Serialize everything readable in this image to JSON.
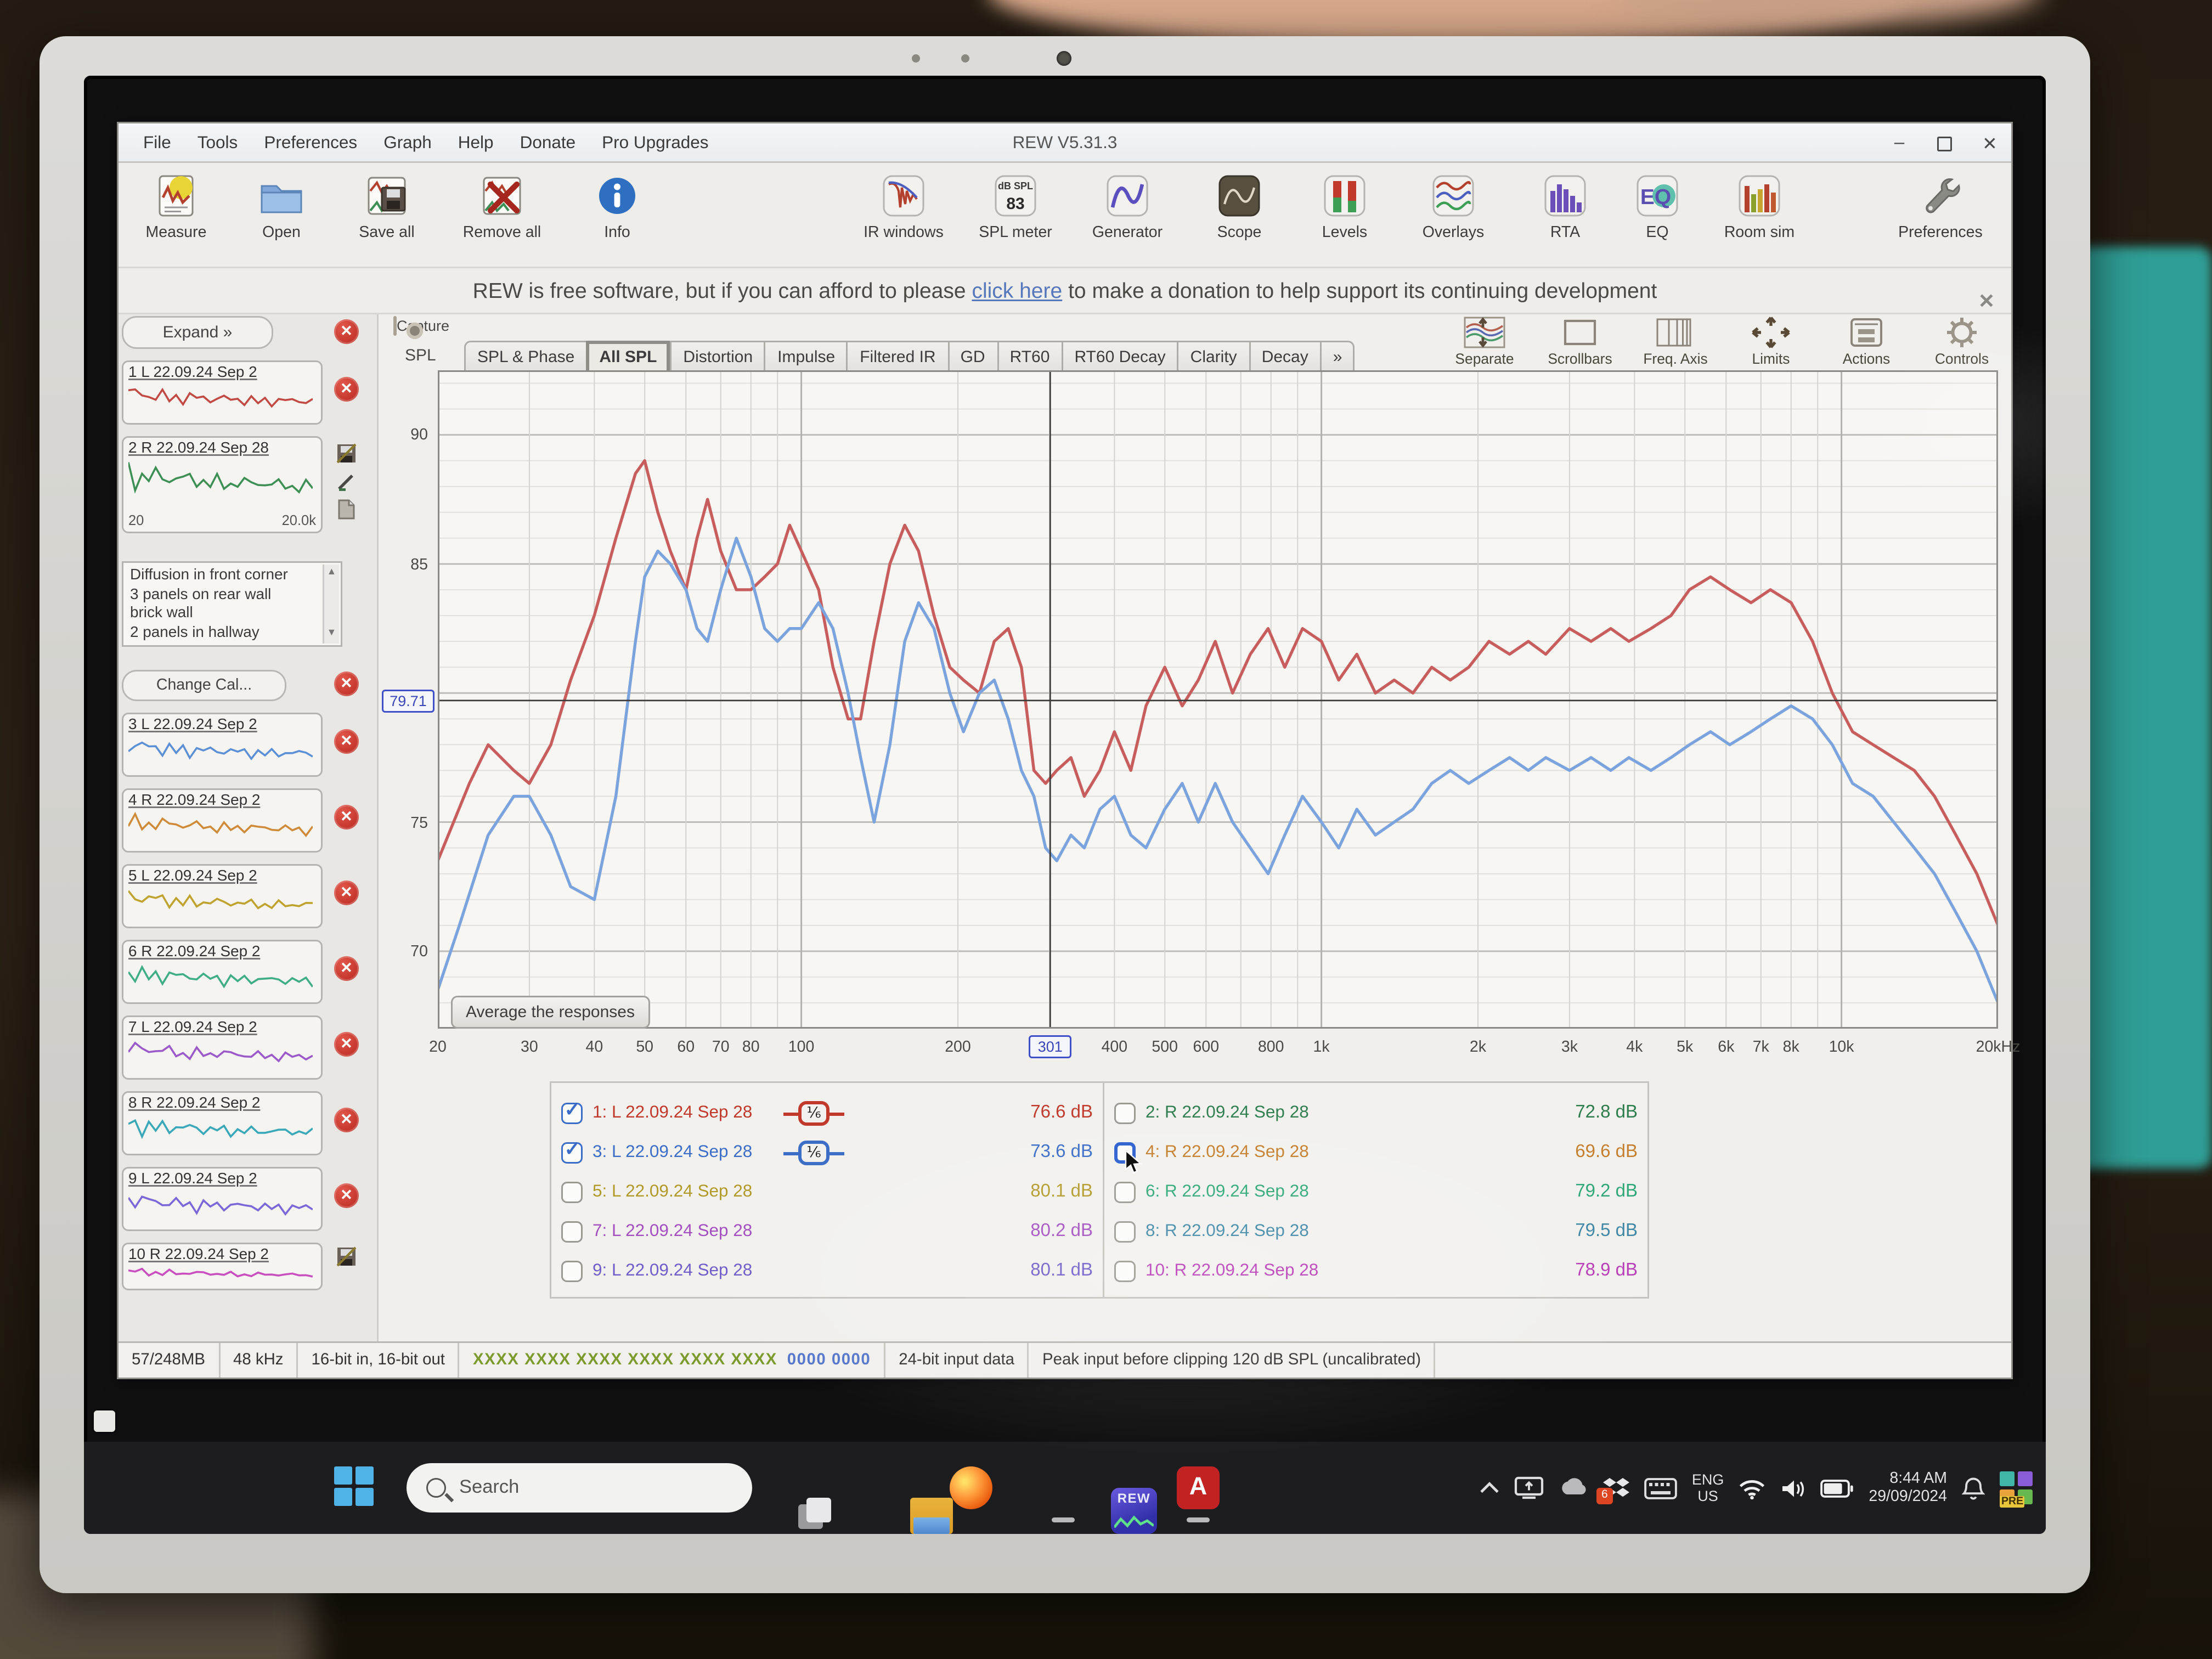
{
  "window": {
    "title": "REW V5.31.3",
    "menus": [
      "File",
      "Tools",
      "Preferences",
      "Graph",
      "Help",
      "Donate",
      "Pro Upgrades"
    ],
    "controls": {
      "minimize": "–",
      "close": "✕"
    }
  },
  "toolbar": {
    "left": [
      {
        "label": "Measure"
      },
      {
        "label": "Open"
      },
      {
        "label": "Save all"
      },
      {
        "label": "Remove all"
      },
      {
        "label": "Info"
      }
    ],
    "middle": [
      {
        "label": "IR windows"
      },
      {
        "label": "SPL meter"
      },
      {
        "label": "Generator"
      },
      {
        "label": "Scope"
      },
      {
        "label": "Levels"
      },
      {
        "label": "Overlays"
      },
      {
        "label": "RTA"
      },
      {
        "label": "EQ"
      },
      {
        "label": "Room sim"
      }
    ],
    "spl_meter_unit": "dB SPL",
    "spl_meter_value": "83",
    "right": {
      "label": "Preferences"
    }
  },
  "banner": {
    "text_before": "REW is free software, but if you can afford to please",
    "link": "click here",
    "text_after": "to make a donation to help support its continuing development",
    "close": "✕"
  },
  "sidebar": {
    "expand_label": "Expand",
    "expand_chevrons": "»",
    "change_cal_label": "Change Cal...",
    "thumb_axis_min": "20",
    "thumb_axis_max": "20.0k",
    "notes_lines": [
      "Diffusion in front corner",
      "3 panels on rear wall",
      "brick wall",
      "2 panels in hallway"
    ],
    "items": [
      {
        "label": "1 L 22.09.24 Sep 2",
        "color": "#c24a44"
      },
      {
        "label": "2 R 22.09.24 Sep 28",
        "color": "#3d8f55",
        "selected": true
      },
      {
        "label": "3 L 22.09.24 Sep 2",
        "color": "#5b8fd6"
      },
      {
        "label": "4 R 22.09.24 Sep 2",
        "color": "#cf8b3a"
      },
      {
        "label": "5 L 22.09.24 Sep 2",
        "color": "#bfa32e"
      },
      {
        "label": "6 R 22.09.24 Sep 2",
        "color": "#3fae86"
      },
      {
        "label": "7 L 22.09.24 Sep 2",
        "color": "#9b59c9"
      },
      {
        "label": "8 R 22.09.24 Sep 2",
        "color": "#3aa8b8"
      },
      {
        "label": "9 L 22.09.24 Sep 2",
        "color": "#7a68d8"
      },
      {
        "label": "10 R 22.09.24 Sep 2",
        "color": "#c94fc0"
      }
    ]
  },
  "graph": {
    "capture_label": "Capture",
    "tabs": [
      "SPL & Phase",
      "All SPL",
      "Distortion",
      "Impulse",
      "Filtered IR",
      "GD",
      "RT60",
      "RT60 Decay",
      "Clarity",
      "Decay"
    ],
    "active_tab": "All SPL",
    "more_tabs": "»",
    "right_buttons": [
      "Separate",
      "Scrollbars",
      "Freq. Axis",
      "Limits",
      "Actions",
      "Controls"
    ],
    "average_button": "Average the responses",
    "cursor_freq_label": "301",
    "cursor_spl_label": "79.71"
  },
  "chart_data": {
    "type": "line",
    "title": "All SPL",
    "ylabel": "SPL",
    "x_scale": "log",
    "xlim": [
      20,
      20000
    ],
    "ylim": [
      67,
      92.5
    ],
    "grid": true,
    "cursor": {
      "x": 301,
      "y": 79.71
    },
    "x_ticks": [
      [
        20,
        "20"
      ],
      [
        30,
        "30"
      ],
      [
        40,
        "40"
      ],
      [
        50,
        "50"
      ],
      [
        60,
        "60"
      ],
      [
        70,
        "70"
      ],
      [
        80,
        "80"
      ],
      [
        100,
        "100"
      ],
      [
        200,
        "200"
      ],
      [
        400,
        "400"
      ],
      [
        500,
        "500"
      ],
      [
        600,
        "600"
      ],
      [
        800,
        "800"
      ],
      [
        1000,
        "1k"
      ],
      [
        2000,
        "2k"
      ],
      [
        3000,
        "3k"
      ],
      [
        4000,
        "4k"
      ],
      [
        5000,
        "5k"
      ],
      [
        6000,
        "6k"
      ],
      [
        7000,
        "7k"
      ],
      [
        8000,
        "8k"
      ],
      [
        10000,
        "10k"
      ],
      [
        20000,
        "20kHz"
      ]
    ],
    "y_ticks": [
      [
        90,
        "90"
      ],
      [
        85,
        "85"
      ],
      [
        75,
        "75"
      ],
      [
        70,
        "70"
      ]
    ],
    "series": [
      {
        "name": "1: L 22.09.24 Sep 28",
        "color": "#c75d5d",
        "points": [
          [
            20,
            73.5
          ],
          [
            23,
            76.5
          ],
          [
            25,
            78
          ],
          [
            28,
            77
          ],
          [
            30,
            76.5
          ],
          [
            33,
            78
          ],
          [
            36,
            80.5
          ],
          [
            40,
            83
          ],
          [
            44,
            86
          ],
          [
            48,
            88.5
          ],
          [
            50,
            89
          ],
          [
            53,
            87
          ],
          [
            56,
            85.5
          ],
          [
            60,
            84
          ],
          [
            63,
            86
          ],
          [
            66,
            87.5
          ],
          [
            70,
            85.5
          ],
          [
            75,
            84
          ],
          [
            80,
            84
          ],
          [
            85,
            84.5
          ],
          [
            90,
            85
          ],
          [
            95,
            86.5
          ],
          [
            100,
            85.5
          ],
          [
            108,
            84
          ],
          [
            115,
            81
          ],
          [
            123,
            79
          ],
          [
            130,
            79
          ],
          [
            138,
            82
          ],
          [
            148,
            85
          ],
          [
            158,
            86.5
          ],
          [
            168,
            85.5
          ],
          [
            180,
            83
          ],
          [
            193,
            81
          ],
          [
            205,
            80.5
          ],
          [
            220,
            80
          ],
          [
            235,
            82
          ],
          [
            250,
            82.5
          ],
          [
            265,
            81
          ],
          [
            280,
            77
          ],
          [
            295,
            76.5
          ],
          [
            310,
            77
          ],
          [
            330,
            77.5
          ],
          [
            350,
            76
          ],
          [
            375,
            77
          ],
          [
            400,
            78.5
          ],
          [
            430,
            77
          ],
          [
            460,
            79.5
          ],
          [
            500,
            81
          ],
          [
            540,
            79.5
          ],
          [
            580,
            80.5
          ],
          [
            625,
            82
          ],
          [
            675,
            80
          ],
          [
            730,
            81.5
          ],
          [
            790,
            82.5
          ],
          [
            850,
            81
          ],
          [
            920,
            82.5
          ],
          [
            1000,
            82
          ],
          [
            1080,
            80.5
          ],
          [
            1170,
            81.5
          ],
          [
            1270,
            80
          ],
          [
            1380,
            80.5
          ],
          [
            1500,
            80
          ],
          [
            1630,
            81
          ],
          [
            1770,
            80.5
          ],
          [
            1920,
            81
          ],
          [
            2100,
            82
          ],
          [
            2300,
            81.5
          ],
          [
            2500,
            82
          ],
          [
            2700,
            81.5
          ],
          [
            3000,
            82.5
          ],
          [
            3300,
            82
          ],
          [
            3600,
            82.5
          ],
          [
            3900,
            82
          ],
          [
            4300,
            82.5
          ],
          [
            4700,
            83
          ],
          [
            5100,
            84
          ],
          [
            5600,
            84.5
          ],
          [
            6100,
            84
          ],
          [
            6700,
            83.5
          ],
          [
            7300,
            84
          ],
          [
            8000,
            83.5
          ],
          [
            8800,
            82
          ],
          [
            9600,
            80
          ],
          [
            10500,
            78.5
          ],
          [
            11500,
            78
          ],
          [
            12600,
            77.5
          ],
          [
            13800,
            77
          ],
          [
            15100,
            76
          ],
          [
            16600,
            74.5
          ],
          [
            18200,
            73
          ],
          [
            20000,
            71
          ]
        ]
      },
      {
        "name": "3: L 22.09.24 Sep 28",
        "color": "#7ba3dd",
        "points": [
          [
            20,
            68.5
          ],
          [
            22,
            71
          ],
          [
            25,
            74.5
          ],
          [
            28,
            76
          ],
          [
            30,
            76
          ],
          [
            33,
            74.5
          ],
          [
            36,
            72.5
          ],
          [
            40,
            72
          ],
          [
            44,
            76
          ],
          [
            48,
            82
          ],
          [
            50,
            84.5
          ],
          [
            53,
            85.5
          ],
          [
            56,
            85
          ],
          [
            60,
            84
          ],
          [
            63,
            82.5
          ],
          [
            66,
            82
          ],
          [
            70,
            84
          ],
          [
            75,
            86
          ],
          [
            80,
            84.5
          ],
          [
            85,
            82.5
          ],
          [
            90,
            82
          ],
          [
            95,
            82.5
          ],
          [
            100,
            82.5
          ],
          [
            108,
            83.5
          ],
          [
            115,
            82.5
          ],
          [
            123,
            80
          ],
          [
            130,
            77.5
          ],
          [
            138,
            75
          ],
          [
            148,
            78
          ],
          [
            158,
            82
          ],
          [
            168,
            83.5
          ],
          [
            180,
            82.5
          ],
          [
            193,
            80
          ],
          [
            205,
            78.5
          ],
          [
            220,
            80
          ],
          [
            235,
            80.5
          ],
          [
            250,
            79
          ],
          [
            265,
            77
          ],
          [
            280,
            76
          ],
          [
            295,
            74
          ],
          [
            310,
            73.5
          ],
          [
            330,
            74.5
          ],
          [
            350,
            74
          ],
          [
            375,
            75.5
          ],
          [
            400,
            76
          ],
          [
            430,
            74.5
          ],
          [
            460,
            74
          ],
          [
            500,
            75.5
          ],
          [
            540,
            76.5
          ],
          [
            580,
            75
          ],
          [
            625,
            76.5
          ],
          [
            675,
            75
          ],
          [
            730,
            74
          ],
          [
            790,
            73
          ],
          [
            850,
            74.5
          ],
          [
            920,
            76
          ],
          [
            1000,
            75
          ],
          [
            1080,
            74
          ],
          [
            1170,
            75.5
          ],
          [
            1270,
            74.5
          ],
          [
            1380,
            75
          ],
          [
            1500,
            75.5
          ],
          [
            1630,
            76.5
          ],
          [
            1770,
            77
          ],
          [
            1920,
            76.5
          ],
          [
            2100,
            77
          ],
          [
            2300,
            77.5
          ],
          [
            2500,
            77
          ],
          [
            2700,
            77.5
          ],
          [
            3000,
            77
          ],
          [
            3300,
            77.5
          ],
          [
            3600,
            77
          ],
          [
            3900,
            77.5
          ],
          [
            4300,
            77
          ],
          [
            4700,
            77.5
          ],
          [
            5100,
            78
          ],
          [
            5600,
            78.5
          ],
          [
            6100,
            78
          ],
          [
            6700,
            78.5
          ],
          [
            7300,
            79
          ],
          [
            8000,
            79.5
          ],
          [
            8800,
            79
          ],
          [
            9600,
            78
          ],
          [
            10500,
            76.5
          ],
          [
            11500,
            76
          ],
          [
            12600,
            75
          ],
          [
            13800,
            74
          ],
          [
            15100,
            73
          ],
          [
            16600,
            71.5
          ],
          [
            18200,
            70
          ],
          [
            20000,
            68
          ]
        ]
      }
    ]
  },
  "legend": {
    "left": [
      {
        "num": "1:",
        "label": "L 22.09.24 Sep 28",
        "db": "76.6 dB",
        "color": "#c0392b",
        "checked": true,
        "badge": "⅙"
      },
      {
        "num": "3:",
        "label": "L 22.09.24 Sep 28",
        "db": "73.6 dB",
        "color": "#3c6ec7",
        "checked": true,
        "badge": "⅙"
      },
      {
        "num": "5:",
        "label": "L 22.09.24 Sep 28",
        "db": "80.1 dB",
        "color": "#b29a2a",
        "checked": false
      },
      {
        "num": "7:",
        "label": "L 22.09.24 Sep 28",
        "db": "80.2 dB",
        "color": "#a34fc0",
        "checked": false
      },
      {
        "num": "9:",
        "label": "L 22.09.24 Sep 28",
        "db": "80.1 dB",
        "color": "#6f5ec9",
        "checked": false
      }
    ],
    "right": [
      {
        "num": "2:",
        "label": "R 22.09.24 Sep 28",
        "db": "72.8 dB",
        "color": "#2e7d4f",
        "checked": false
      },
      {
        "num": "4:",
        "label": "R 22.09.24 Sep 28",
        "db": "69.6 dB",
        "color": "#c57f2e",
        "checked": false,
        "hover": true
      },
      {
        "num": "6:",
        "label": "R 22.09.24 Sep 28",
        "db": "79.2 dB",
        "color": "#2fa877",
        "checked": false
      },
      {
        "num": "8:",
        "label": "R 22.09.24 Sep 28",
        "db": "79.5 dB",
        "color": "#3f87a6",
        "checked": false
      },
      {
        "num": "10:",
        "label": "R 22.09.24 Sep 28",
        "db": "78.9 dB",
        "color": "#b83cb8",
        "checked": false
      }
    ]
  },
  "status": {
    "memory": "57/248MB",
    "sample_rate": "48 kHz",
    "bit_depth": "16-bit in, 16-bit out",
    "hex_blocks": "XXXX XXXX  XXXX XXXX  XXXX XXXX",
    "zero_block": "0000 0000",
    "input_format": "24-bit input data",
    "peak_info": "Peak input before clipping 120 dB SPL (uncalibrated)"
  },
  "taskbar": {
    "search_placeholder": "Search",
    "rew_label": "REW",
    "acrobat_label": "A",
    "tray": {
      "lang_top": "ENG",
      "lang_bottom": "US",
      "time": "8:44 AM",
      "date": "29/09/2024",
      "dropbox_badge": "6",
      "insider_badge": "PRE"
    }
  },
  "colors": {
    "series_red": "#c75d5d",
    "series_blue": "#7ba3dd",
    "cursor_blue": "#4050c8",
    "hex_green": "#7c9a2e",
    "zeros_blue": "#5577cc"
  }
}
